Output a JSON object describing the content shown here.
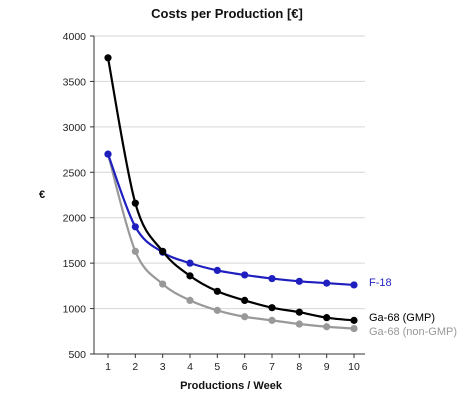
{
  "chart_data": {
    "type": "line",
    "title": "Costs per Production [€]",
    "xlabel": "Productions / Week",
    "ylabel": "€",
    "x": [
      1,
      2,
      3,
      4,
      5,
      6,
      7,
      8,
      9,
      10
    ],
    "xlim": [
      1,
      10
    ],
    "ylim": [
      500,
      4000
    ],
    "yticks": [
      500,
      1000,
      1500,
      2000,
      2500,
      3000,
      3500,
      4000
    ],
    "grid": "horizontal",
    "legend": "right-of-lines",
    "series": [
      {
        "name": "F-18",
        "color": "#1f1fbf",
        "values": [
          2700,
          1900,
          1620,
          1500,
          1420,
          1370,
          1330,
          1300,
          1280,
          1260
        ]
      },
      {
        "name": "Ga-68 (GMP)",
        "color": "#000000",
        "values": [
          3760,
          2160,
          1630,
          1360,
          1190,
          1090,
          1010,
          960,
          900,
          870
        ]
      },
      {
        "name": "Ga-68 (non-GMP)",
        "color": "#999999",
        "values": [
          2700,
          1630,
          1270,
          1090,
          980,
          910,
          870,
          830,
          800,
          780
        ]
      }
    ]
  }
}
